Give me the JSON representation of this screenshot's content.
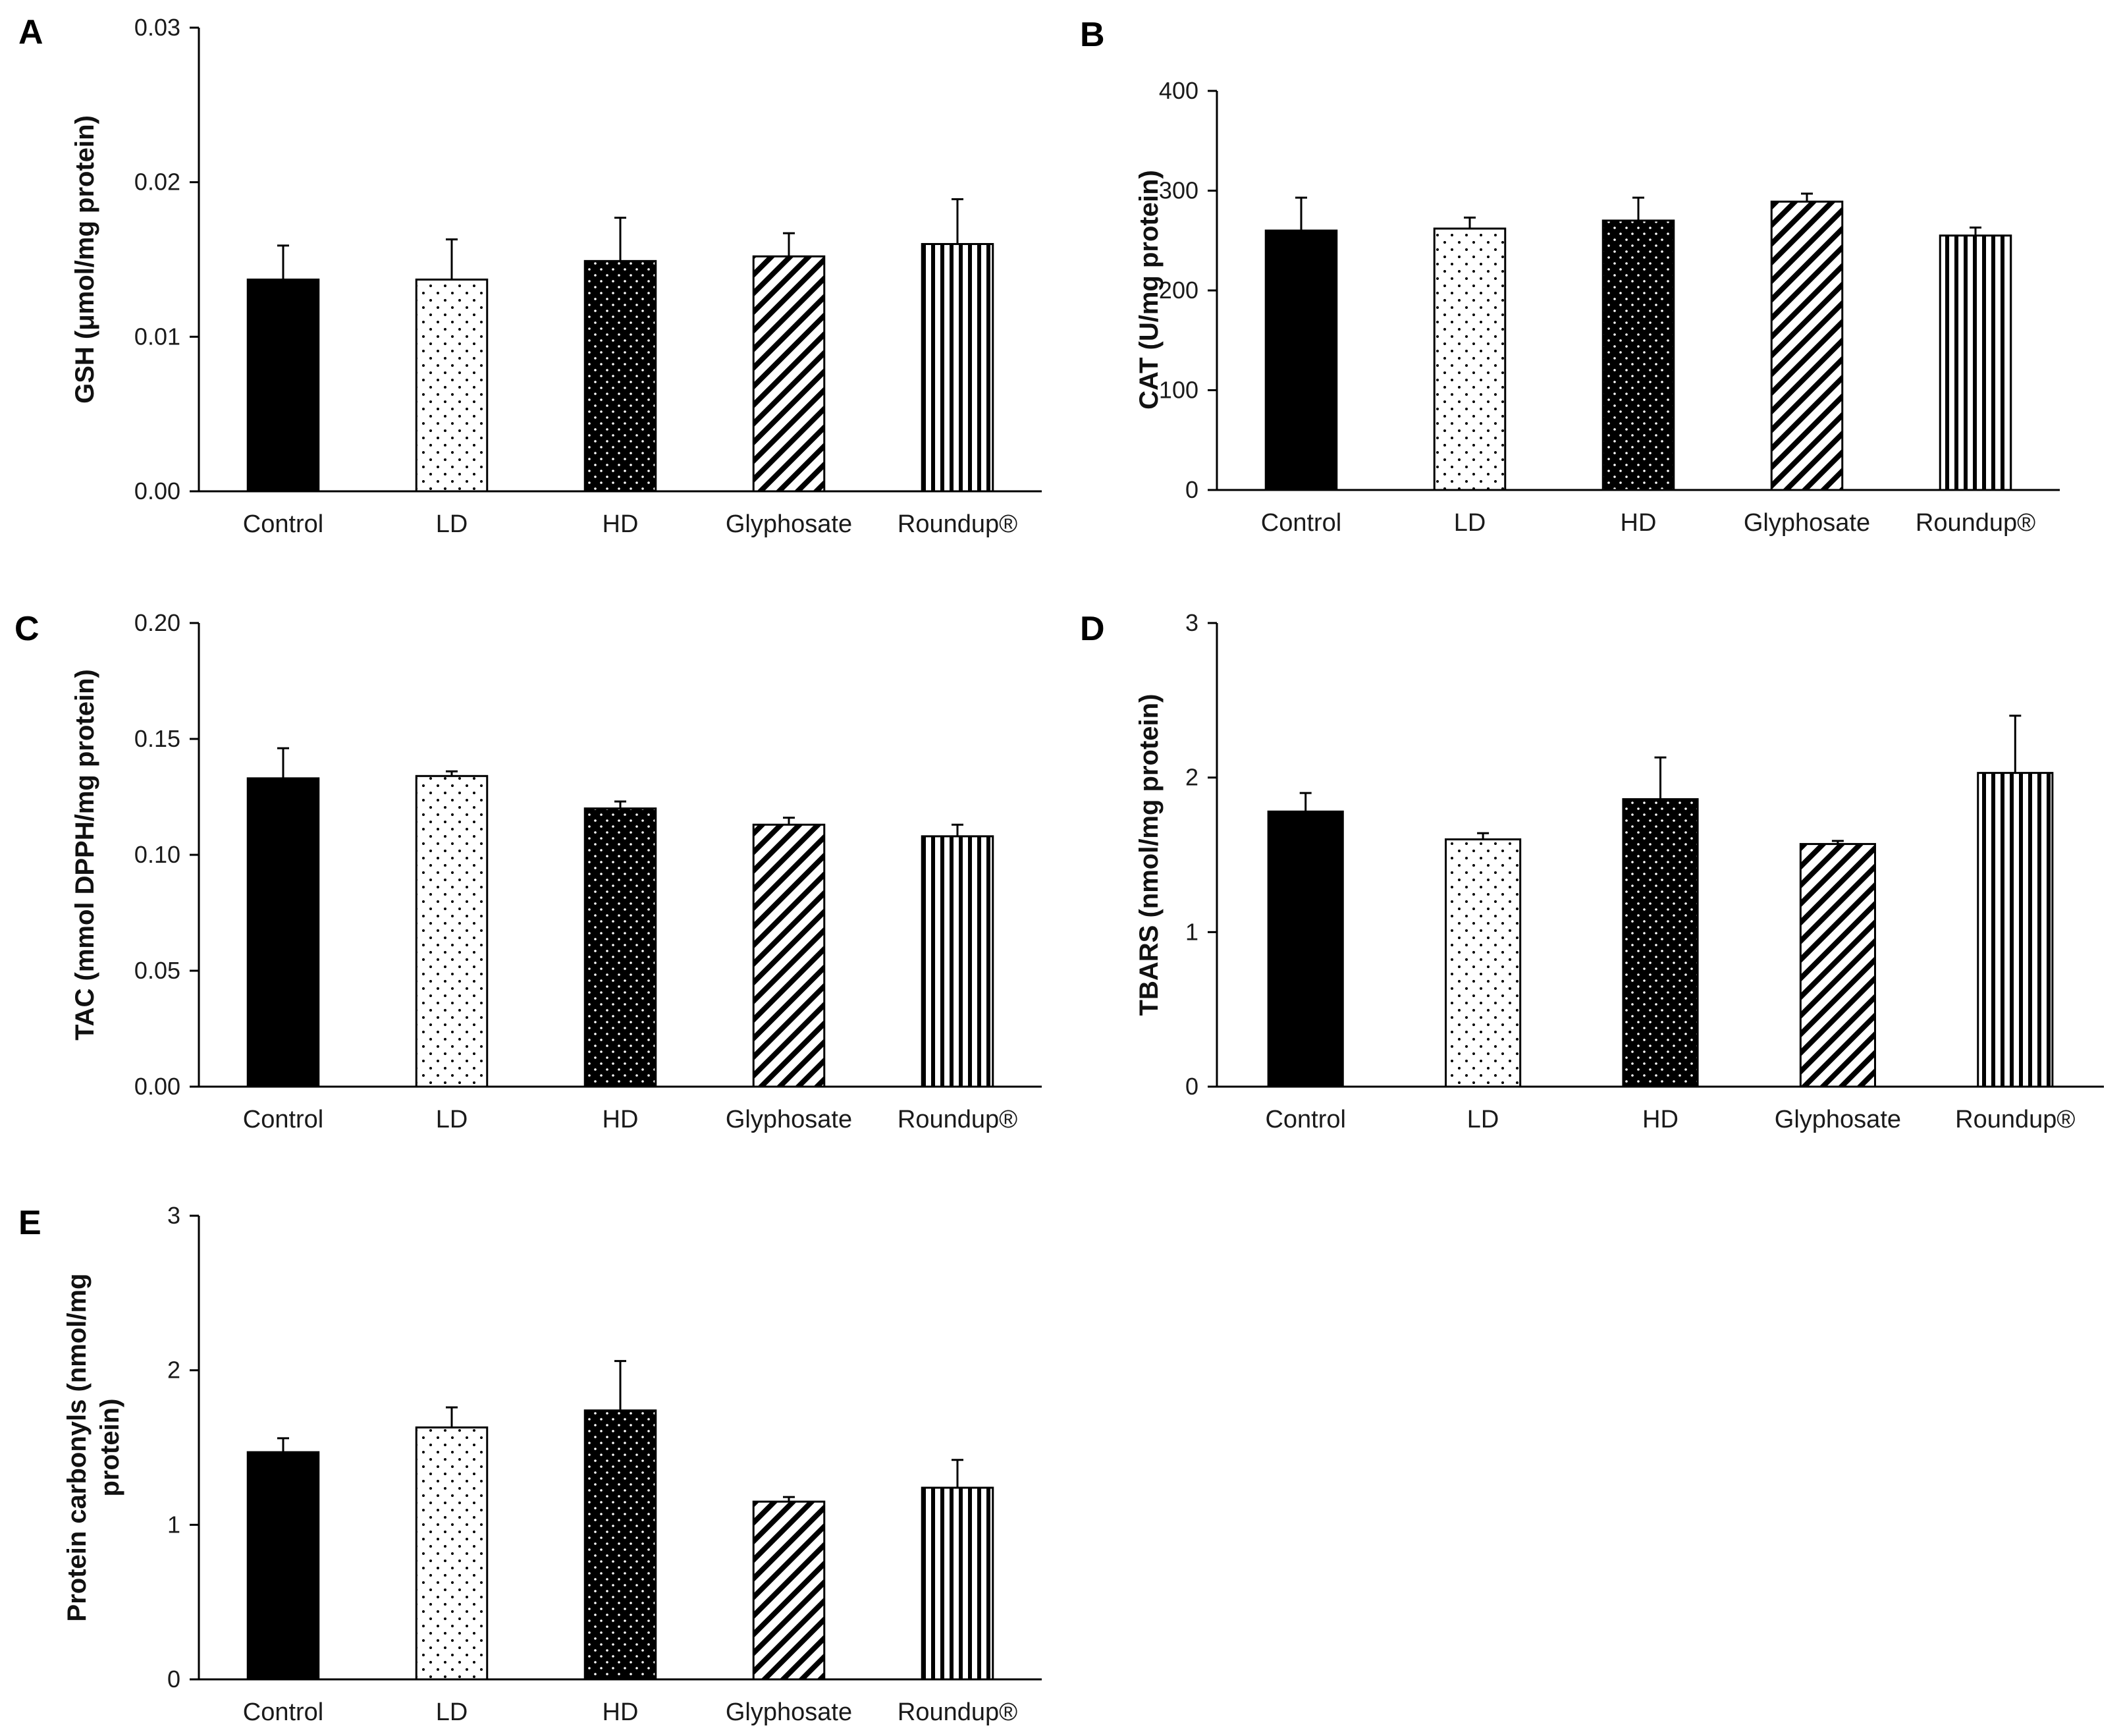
{
  "chart_data": [
    {
      "panel": "A",
      "type": "bar",
      "categories": [
        "Control",
        "LD",
        "HD",
        "Glyphosate",
        "Roundup®"
      ],
      "values": [
        0.0137,
        0.0137,
        0.0149,
        0.0152,
        0.016
      ],
      "errors": [
        0.0022,
        0.0026,
        0.0028,
        0.0015,
        0.0029
      ],
      "ylabel": "GSH (μmol/mg  protein)",
      "ylim": [
        0,
        0.03
      ],
      "yticks": [
        0.0,
        0.01,
        0.02,
        0.03
      ],
      "ytick_labels": [
        "0.00",
        "0.01",
        "0.02",
        "0.03"
      ],
      "patterns": [
        "solid",
        "sparse-dots",
        "dense-dots",
        "diagonal",
        "vertical"
      ]
    },
    {
      "panel": "B",
      "type": "bar",
      "categories": [
        "Control",
        "LD",
        "HD",
        "Glyphosate",
        "Roundup®"
      ],
      "values": [
        260,
        262,
        270,
        289,
        255
      ],
      "errors": [
        33,
        11,
        23,
        8,
        8
      ],
      "ylabel": "CAT (U/mg protein)",
      "ylim": [
        0,
        400
      ],
      "yticks": [
        0,
        100,
        200,
        300,
        400
      ],
      "ytick_labels": [
        "0",
        "100",
        "200",
        "300",
        "400"
      ],
      "patterns": [
        "solid",
        "sparse-dots",
        "dense-dots",
        "diagonal",
        "vertical"
      ]
    },
    {
      "panel": "C",
      "type": "bar",
      "categories": [
        "Control",
        "LD",
        "HD",
        "Glyphosate",
        "Roundup®"
      ],
      "values": [
        0.133,
        0.134,
        0.12,
        0.113,
        0.108
      ],
      "errors": [
        0.013,
        0.002,
        0.003,
        0.003,
        0.005
      ],
      "ylabel": "TAC (mmol DPPH/mg  protein)",
      "ylim": [
        0,
        0.2
      ],
      "yticks": [
        0.0,
        0.05,
        0.1,
        0.15,
        0.2
      ],
      "ytick_labels": [
        "0.00",
        "0.05",
        "0.10",
        "0.15",
        "0.20"
      ],
      "patterns": [
        "solid",
        "sparse-dots",
        "dense-dots",
        "diagonal",
        "vertical"
      ]
    },
    {
      "panel": "D",
      "type": "bar",
      "categories": [
        "Control",
        "LD",
        "HD",
        "Glyphosate",
        "Roundup®"
      ],
      "values": [
        1.78,
        1.6,
        1.86,
        1.57,
        2.03
      ],
      "errors": [
        0.12,
        0.04,
        0.27,
        0.02,
        0.37
      ],
      "ylabel": "TBARS (nmol/mg protein)",
      "ylim": [
        0,
        3
      ],
      "yticks": [
        0,
        1,
        2,
        3
      ],
      "ytick_labels": [
        "0",
        "1",
        "2",
        "3"
      ],
      "patterns": [
        "solid",
        "sparse-dots",
        "dense-dots",
        "diagonal",
        "vertical"
      ]
    },
    {
      "panel": "E",
      "type": "bar",
      "categories": [
        "Control",
        "LD",
        "HD",
        "Glyphosate",
        "Roundup®"
      ],
      "values": [
        1.47,
        1.63,
        1.74,
        1.15,
        1.24
      ],
      "errors": [
        0.09,
        0.13,
        0.32,
        0.03,
        0.18
      ],
      "ylabel_lines": [
        "Protein carbonyls (nmol/mg",
        "protein)"
      ],
      "ylim": [
        0,
        3
      ],
      "yticks": [
        0,
        1,
        2,
        3
      ],
      "ytick_labels": [
        "0",
        "1",
        "2",
        "3"
      ],
      "patterns": [
        "solid",
        "sparse-dots",
        "dense-dots",
        "diagonal",
        "vertical"
      ]
    }
  ]
}
